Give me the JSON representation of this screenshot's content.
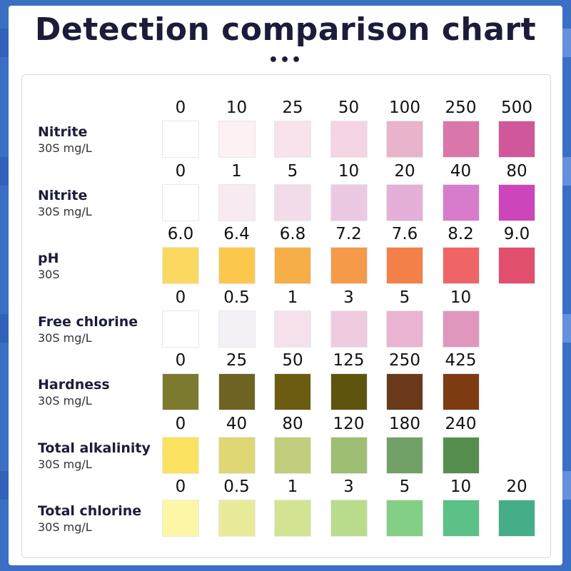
{
  "title": "Detection comparison chart",
  "subtitle_dots": "•••",
  "rows": [
    {
      "name": "Nitrite",
      "unit": "30S mg/L",
      "cells": [
        {
          "value": "0",
          "color": "#ffffff"
        },
        {
          "value": "10",
          "color": "#fcf1f3"
        },
        {
          "value": "25",
          "color": "#f8e2ec"
        },
        {
          "value": "50",
          "color": "#f4d4e5"
        },
        {
          "value": "100",
          "color": "#eab3cc"
        },
        {
          "value": "250",
          "color": "#d977aa"
        },
        {
          "value": "500",
          "color": "#d1579b"
        }
      ]
    },
    {
      "name": "Nitrite",
      "unit": "30S mg/L",
      "cells": [
        {
          "value": "0",
          "color": "#ffffff"
        },
        {
          "value": "1",
          "color": "#f7eaf1"
        },
        {
          "value": "5",
          "color": "#f2dce9"
        },
        {
          "value": "10",
          "color": "#ecc9e2"
        },
        {
          "value": "20",
          "color": "#e5b0d8"
        },
        {
          "value": "40",
          "color": "#d77ccb"
        },
        {
          "value": "80",
          "color": "#cc45bb"
        }
      ]
    },
    {
      "name": "pH",
      "unit": "30S",
      "cells": [
        {
          "value": "6.0",
          "color": "#fbd860"
        },
        {
          "value": "6.4",
          "color": "#fbc84d"
        },
        {
          "value": "6.8",
          "color": "#f6ae48"
        },
        {
          "value": "7.2",
          "color": "#f49a48"
        },
        {
          "value": "7.6",
          "color": "#f28048"
        },
        {
          "value": "8.2",
          "color": "#ef6567"
        },
        {
          "value": "9.0",
          "color": "#e24e6e"
        }
      ]
    },
    {
      "name": "Free chlorine",
      "unit": "30S mg/L",
      "cells": [
        {
          "value": "0",
          "color": "#ffffff"
        },
        {
          "value": "0.5",
          "color": "#f3f1f6"
        },
        {
          "value": "1",
          "color": "#f4e1ec"
        },
        {
          "value": "3",
          "color": "#efcbe0"
        },
        {
          "value": "5",
          "color": "#eab3d2"
        },
        {
          "value": "10",
          "color": "#df97bd"
        }
      ]
    },
    {
      "name": "Hardness",
      "unit": "30S mg/L",
      "cells": [
        {
          "value": "0",
          "color": "#7c7a2e"
        },
        {
          "value": "25",
          "color": "#6e6322"
        },
        {
          "value": "50",
          "color": "#6b5c12"
        },
        {
          "value": "125",
          "color": "#5f540e"
        },
        {
          "value": "250",
          "color": "#6b3a1a"
        },
        {
          "value": "425",
          "color": "#7d3c14"
        }
      ]
    },
    {
      "name": "Total alkalinity",
      "unit": "30S mg/L",
      "cells": [
        {
          "value": "0",
          "color": "#fbe260"
        },
        {
          "value": "40",
          "color": "#dfd674"
        },
        {
          "value": "80",
          "color": "#c1cd7c"
        },
        {
          "value": "120",
          "color": "#9ebe73"
        },
        {
          "value": "180",
          "color": "#71a166"
        },
        {
          "value": "240",
          "color": "#568e4f"
        }
      ]
    },
    {
      "name": "Total chlorine",
      "unit": "30S mg/L",
      "cells": [
        {
          "value": "0",
          "color": "#fcf7a6"
        },
        {
          "value": "0.5",
          "color": "#e8ec9a"
        },
        {
          "value": "1",
          "color": "#d2e391"
        },
        {
          "value": "3",
          "color": "#b8db8c"
        },
        {
          "value": "5",
          "color": "#83cf85"
        },
        {
          "value": "10",
          "color": "#5bc186"
        },
        {
          "value": "20",
          "color": "#45ae88"
        }
      ]
    }
  ]
}
